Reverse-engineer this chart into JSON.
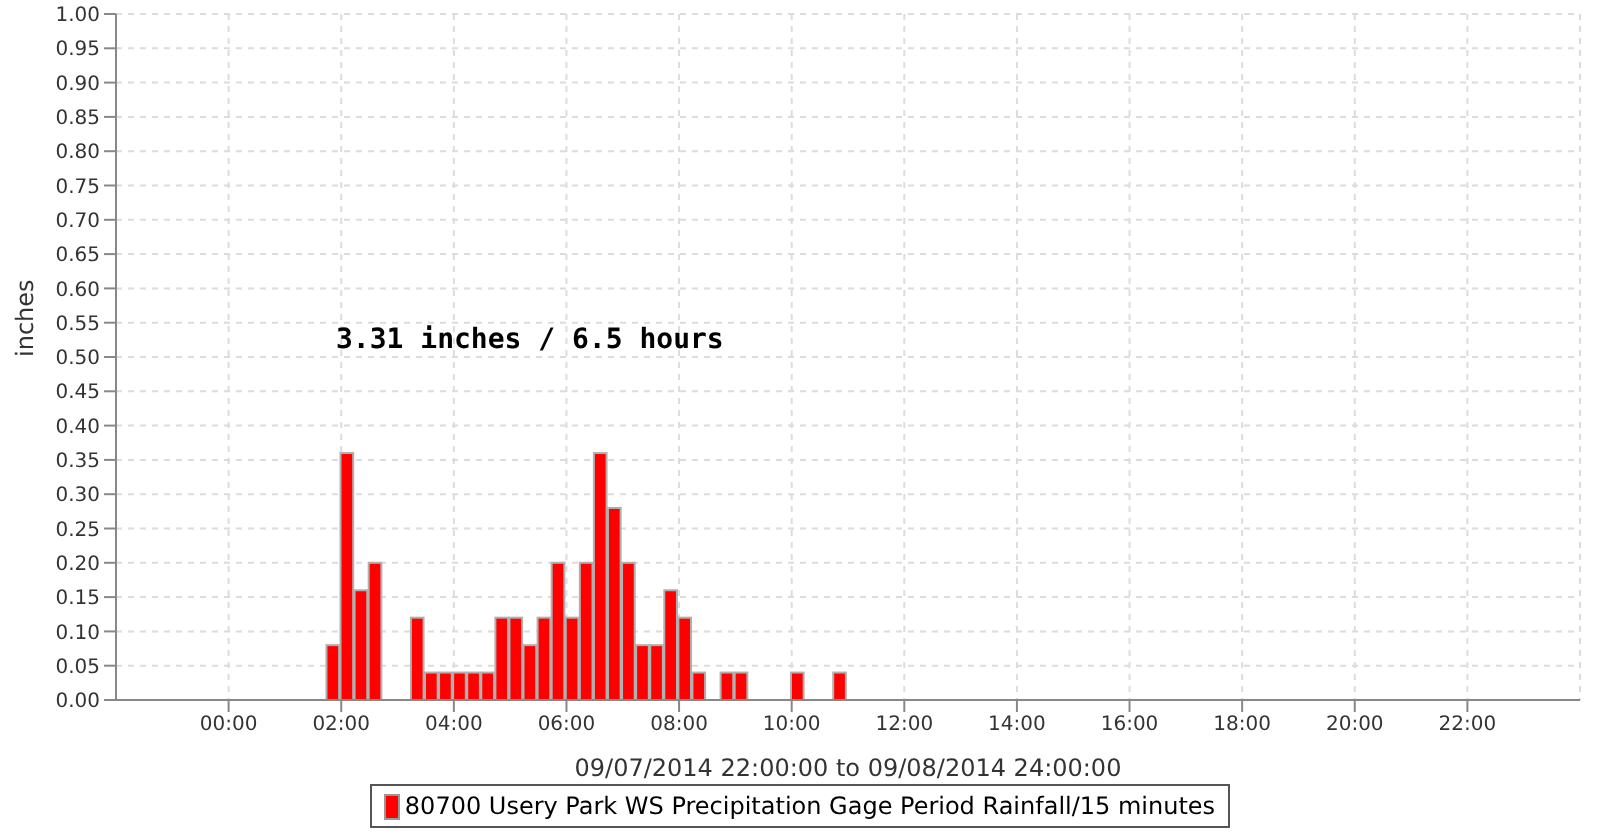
{
  "chart_data": {
    "type": "bar",
    "xlabel": "09/07/2014 22:00:00 to 09/08/2014 24:00:00",
    "ylabel": "inches",
    "annotations": [
      "3.31 inches / 6.5 hours"
    ],
    "x": [
      1.75,
      2,
      2.25,
      2.5,
      3.25,
      3.5,
      3.75,
      4,
      4.25,
      4.5,
      4.75,
      5,
      5.25,
      5.5,
      5.75,
      6,
      6.25,
      6.5,
      6.75,
      7,
      7.25,
      7.5,
      7.75,
      8,
      8.25,
      8.75,
      9,
      10,
      10.75
    ],
    "series": [
      {
        "name": "80700 Usery Park WS Precipitation Gage Period Rainfall/15 minutes",
        "color": "#ff0000",
        "values": [
          0.08,
          0.36,
          0.16,
          0.2,
          0.12,
          0.04,
          0.04,
          0.04,
          0.04,
          0.04,
          0.12,
          0.12,
          0.08,
          0.12,
          0.2,
          0.12,
          0.2,
          0.36,
          0.28,
          0.2,
          0.08,
          0.08,
          0.16,
          0.12,
          0.04,
          0.04,
          0.04,
          0.04,
          0.04
        ]
      }
    ],
    "xlim": [
      -2,
      24
    ],
    "xticks": [
      {
        "value": 0,
        "label": "00:00"
      },
      {
        "value": 2,
        "label": "02:00"
      },
      {
        "value": 4,
        "label": "04:00"
      },
      {
        "value": 6,
        "label": "06:00"
      },
      {
        "value": 8,
        "label": "08:00"
      },
      {
        "value": 10,
        "label": "10:00"
      },
      {
        "value": 12,
        "label": "12:00"
      },
      {
        "value": 14,
        "label": "14:00"
      },
      {
        "value": 16,
        "label": "16:00"
      },
      {
        "value": 18,
        "label": "18:00"
      },
      {
        "value": 20,
        "label": "20:00"
      },
      {
        "value": 22,
        "label": "22:00"
      }
    ],
    "ylim": [
      0,
      1
    ],
    "yticks": [
      {
        "value": 0,
        "label": "0.00"
      },
      {
        "value": 0.05,
        "label": "0.05"
      },
      {
        "value": 0.1,
        "label": "0.10"
      },
      {
        "value": 0.15,
        "label": "0.15"
      },
      {
        "value": 0.2,
        "label": "0.20"
      },
      {
        "value": 0.25,
        "label": "0.25"
      },
      {
        "value": 0.3,
        "label": "0.30"
      },
      {
        "value": 0.35,
        "label": "0.35"
      },
      {
        "value": 0.4,
        "label": "0.40"
      },
      {
        "value": 0.45,
        "label": "0.45"
      },
      {
        "value": 0.5,
        "label": "0.50"
      },
      {
        "value": 0.55,
        "label": "0.55"
      },
      {
        "value": 0.6,
        "label": "0.60"
      },
      {
        "value": 0.65,
        "label": "0.65"
      },
      {
        "value": 0.7,
        "label": "0.70"
      },
      {
        "value": 0.75,
        "label": "0.75"
      },
      {
        "value": 0.8,
        "label": "0.80"
      },
      {
        "value": 0.85,
        "label": "0.85"
      },
      {
        "value": 0.9,
        "label": "0.90"
      },
      {
        "value": 0.95,
        "label": "0.95"
      },
      {
        "value": 1,
        "label": "1.00"
      }
    ],
    "grid": true,
    "legend": "bottom"
  }
}
